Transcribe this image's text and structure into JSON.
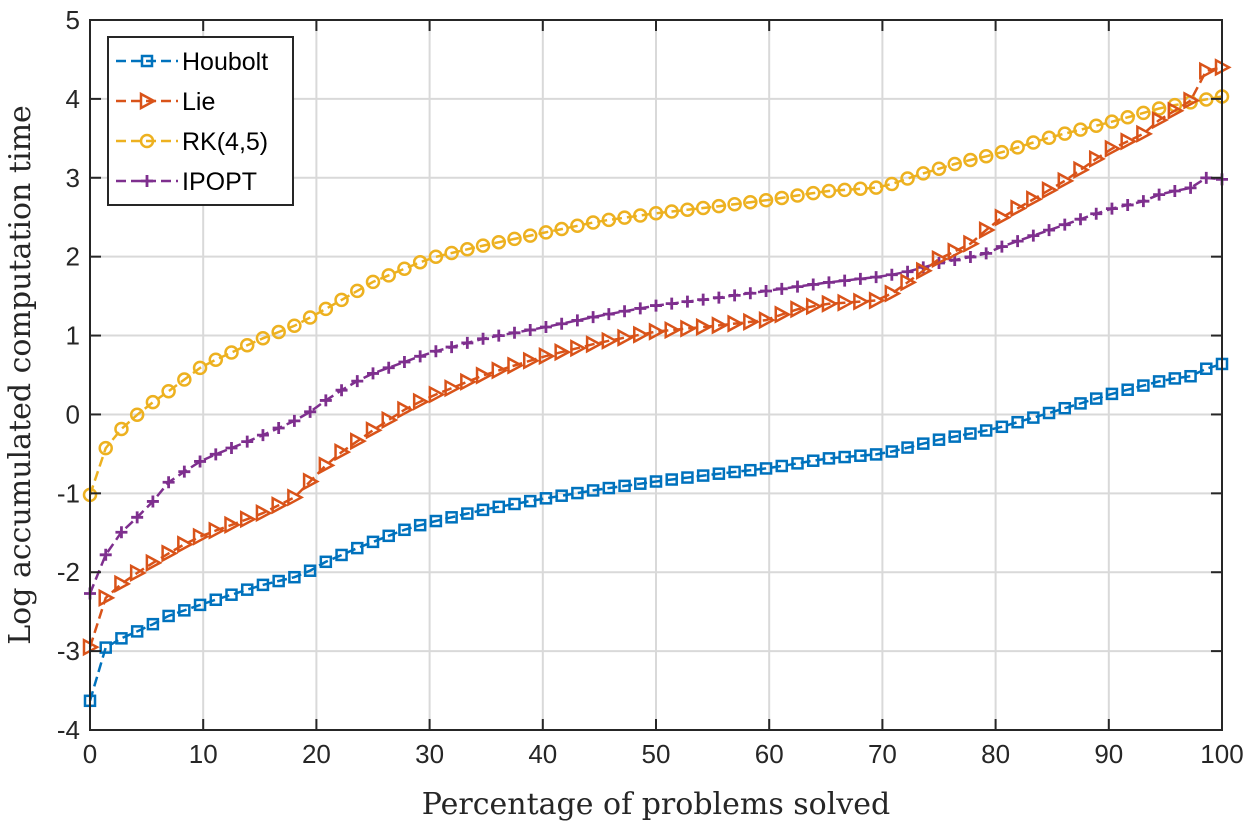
{
  "chart_data": {
    "type": "line",
    "title": "",
    "xlabel": "Percentage of problems solved",
    "ylabel": "Log accumulated computation time",
    "xlim": [
      0,
      100
    ],
    "ylim": [
      -4,
      5
    ],
    "xticks": [
      0,
      10,
      20,
      30,
      40,
      50,
      60,
      70,
      80,
      90,
      100
    ],
    "yticks": [
      -4,
      -3,
      -2,
      -1,
      0,
      1,
      2,
      3,
      4,
      5
    ],
    "grid": true,
    "legend_position": "top-left",
    "series": [
      {
        "name": "Houbolt",
        "color": "#0072BD",
        "marker": "square",
        "anchors": [
          [
            0,
            -3.63
          ],
          [
            1.4,
            -2.95
          ],
          [
            3,
            -2.82
          ],
          [
            5,
            -2.7
          ],
          [
            7,
            -2.55
          ],
          [
            10,
            -2.4
          ],
          [
            15,
            -2.17
          ],
          [
            19,
            -2.03
          ],
          [
            20,
            -1.92
          ],
          [
            24,
            -1.67
          ],
          [
            28,
            -1.45
          ],
          [
            30,
            -1.37
          ],
          [
            35,
            -1.2
          ],
          [
            40,
            -1.07
          ],
          [
            45,
            -0.95
          ],
          [
            50,
            -0.85
          ],
          [
            55,
            -0.76
          ],
          [
            60,
            -0.68
          ],
          [
            65,
            -0.56
          ],
          [
            70,
            -0.5
          ],
          [
            75,
            -0.32
          ],
          [
            80,
            -0.18
          ],
          [
            85,
            0.03
          ],
          [
            90,
            0.25
          ],
          [
            95,
            0.44
          ],
          [
            98,
            0.5
          ],
          [
            99,
            0.63
          ],
          [
            100,
            0.64
          ]
        ]
      },
      {
        "name": "Lie",
        "color": "#D95319",
        "marker": "triangle-right",
        "anchors": [
          [
            0,
            -2.95
          ],
          [
            1.4,
            -2.32
          ],
          [
            3,
            -2.12
          ],
          [
            5,
            -1.93
          ],
          [
            8,
            -1.67
          ],
          [
            10,
            -1.53
          ],
          [
            15,
            -1.27
          ],
          [
            18.5,
            -1.02
          ],
          [
            20,
            -0.75
          ],
          [
            22,
            -0.5
          ],
          [
            25,
            -0.2
          ],
          [
            28,
            0.08
          ],
          [
            30,
            0.22
          ],
          [
            35,
            0.51
          ],
          [
            40,
            0.73
          ],
          [
            45,
            0.91
          ],
          [
            50,
            1.05
          ],
          [
            55,
            1.12
          ],
          [
            60,
            1.2
          ],
          [
            62,
            1.32
          ],
          [
            65,
            1.4
          ],
          [
            70,
            1.45
          ],
          [
            72,
            1.65
          ],
          [
            75,
            1.97
          ],
          [
            78,
            2.18
          ],
          [
            80,
            2.45
          ],
          [
            83,
            2.7
          ],
          [
            86,
            2.95
          ],
          [
            90,
            3.35
          ],
          [
            93,
            3.55
          ],
          [
            95,
            3.8
          ],
          [
            97,
            3.92
          ],
          [
            98.7,
            4.38
          ],
          [
            100,
            4.4
          ]
        ]
      },
      {
        "name": "RK(4,5)",
        "color": "#EDB120",
        "marker": "circle",
        "anchors": [
          [
            0,
            -1.02
          ],
          [
            1.5,
            -0.38
          ],
          [
            3,
            -0.15
          ],
          [
            5,
            0.1
          ],
          [
            7,
            0.3
          ],
          [
            10,
            0.62
          ],
          [
            15,
            0.95
          ],
          [
            18,
            1.12
          ],
          [
            20,
            1.27
          ],
          [
            25,
            1.68
          ],
          [
            30,
            1.98
          ],
          [
            35,
            2.15
          ],
          [
            40,
            2.3
          ],
          [
            45,
            2.45
          ],
          [
            50,
            2.55
          ],
          [
            55,
            2.63
          ],
          [
            60,
            2.72
          ],
          [
            65,
            2.83
          ],
          [
            70,
            2.88
          ],
          [
            73,
            3.03
          ],
          [
            77,
            3.2
          ],
          [
            80,
            3.3
          ],
          [
            85,
            3.52
          ],
          [
            90,
            3.7
          ],
          [
            95,
            3.9
          ],
          [
            97,
            3.95
          ],
          [
            100,
            4.03
          ]
        ]
      },
      {
        "name": "IPOPT",
        "color": "#7E2F8E",
        "marker": "plus",
        "anchors": [
          [
            0,
            -2.27
          ],
          [
            1.5,
            -1.74
          ],
          [
            3,
            -1.45
          ],
          [
            5,
            -1.2
          ],
          [
            7,
            -0.85
          ],
          [
            10,
            -0.57
          ],
          [
            15,
            -0.28
          ],
          [
            19,
            -0.02
          ],
          [
            20,
            0.1
          ],
          [
            23,
            0.38
          ],
          [
            25,
            0.52
          ],
          [
            30,
            0.78
          ],
          [
            35,
            0.97
          ],
          [
            40,
            1.1
          ],
          [
            45,
            1.25
          ],
          [
            50,
            1.38
          ],
          [
            55,
            1.47
          ],
          [
            60,
            1.57
          ],
          [
            65,
            1.67
          ],
          [
            70,
            1.75
          ],
          [
            72,
            1.8
          ],
          [
            75,
            1.92
          ],
          [
            79,
            2.03
          ],
          [
            80,
            2.1
          ],
          [
            85,
            2.35
          ],
          [
            90,
            2.6
          ],
          [
            93,
            2.7
          ],
          [
            95,
            2.82
          ],
          [
            97,
            2.85
          ],
          [
            98.5,
            3.0
          ],
          [
            100,
            2.98
          ]
        ]
      }
    ],
    "points_per_series": 73
  }
}
